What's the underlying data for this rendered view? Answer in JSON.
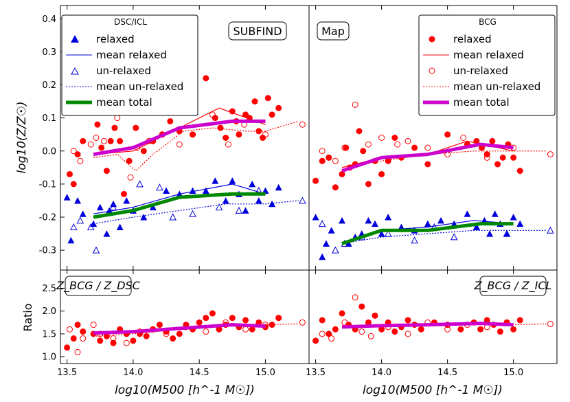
{
  "figure": {
    "xlabel": "log10(M500 [h^-1 M☉])",
    "top_ylabel": "log10(Z/Z☉)",
    "bottom_ylabel": "Ratio"
  },
  "legends": {
    "left": {
      "title": "DSC/ICL",
      "entries": [
        "relaxed",
        "mean relaxed",
        "un-relaxed",
        "mean un-relaxed",
        "mean total"
      ]
    },
    "right": {
      "title": "BCG",
      "entries": [
        "relaxed",
        "mean relaxed",
        "un-relaxed",
        "mean un-relaxed",
        "mean total"
      ]
    }
  },
  "panel_labels": {
    "top_left": "SUBFIND",
    "top_right": "Map",
    "bottom_left": "Z_BCG / Z_DSC",
    "bottom_right": "Z_BCG / Z_ICL"
  },
  "colors": {
    "bcg": "#ff0000",
    "dsc": "#0000dd",
    "mean_total_top": "#cc00cc",
    "mean_total_dsc": "#008800"
  },
  "chart_data": [
    {
      "type": "scatter",
      "panel": "top-left",
      "x_ticks": [
        "13.5",
        "14.0",
        "14.5",
        "15.0"
      ],
      "y_ticks": [
        "0.4",
        "0.3",
        "0.2",
        "0.1",
        "0.0",
        "-0.1",
        "-0.2",
        "-0.3"
      ],
      "xlim": [
        13.45,
        15.33
      ],
      "ylim": [
        -0.36,
        0.44
      ],
      "series": [
        {
          "name": "relaxed",
          "group": "bcg",
          "style": "dot-filled",
          "x": [
            13.52,
            13.55,
            13.58,
            13.62,
            13.73,
            13.76,
            13.8,
            13.83,
            13.86,
            13.9,
            13.93,
            13.97,
            14.02,
            14.08,
            14.15,
            14.22,
            14.28,
            14.35,
            14.45,
            14.55,
            14.62,
            14.66,
            14.7,
            14.75,
            14.78,
            14.8,
            14.85,
            14.88,
            14.92,
            14.95,
            14.98,
            15.02,
            15.05,
            15.1
          ],
          "y": [
            -0.07,
            -0.1,
            -0.01,
            0.03,
            0.08,
            0.01,
            -0.06,
            0.03,
            0.07,
            0.03,
            -0.13,
            -0.03,
            0.07,
            0.0,
            0.03,
            0.05,
            0.09,
            0.06,
            0.05,
            0.22,
            0.1,
            0.07,
            0.04,
            0.12,
            0.09,
            0.05,
            0.11,
            0.1,
            0.15,
            0.06,
            0.04,
            0.16,
            0.11,
            0.13
          ]
        },
        {
          "name": "mean relaxed",
          "group": "bcg",
          "style": "line-thin",
          "x": [
            13.7,
            14.0,
            14.35,
            14.65,
            15.0
          ],
          "y": [
            -0.01,
            0.0,
            0.07,
            0.13,
            0.08
          ]
        },
        {
          "name": "un-relaxed",
          "group": "bcg",
          "style": "dot-open",
          "x": [
            13.55,
            13.6,
            13.68,
            13.72,
            13.78,
            13.88,
            13.98,
            14.03,
            14.12,
            14.22,
            14.35,
            14.45,
            14.6,
            14.72,
            14.84,
            15.0,
            15.28
          ],
          "y": [
            0.0,
            -0.03,
            0.02,
            0.04,
            0.03,
            0.1,
            -0.08,
            0.01,
            0.03,
            0.05,
            0.02,
            0.05,
            0.11,
            0.02,
            0.08,
            0.05,
            0.08
          ]
        },
        {
          "name": "mean un-relaxed",
          "group": "bcg",
          "style": "line-dotted",
          "x": [
            13.7,
            13.88,
            14.02,
            14.15,
            14.38,
            14.6,
            14.85,
            15.0,
            15.25
          ],
          "y": [
            -0.02,
            -0.01,
            -0.06,
            -0.01,
            0.06,
            0.07,
            0.06,
            0.06,
            0.09
          ]
        },
        {
          "name": "mean total",
          "group": "bcg",
          "style": "line-thick-magenta",
          "x": [
            13.7,
            14.0,
            14.35,
            14.75,
            15.0
          ],
          "y": [
            -0.01,
            0.01,
            0.07,
            0.09,
            0.09
          ]
        },
        {
          "name": "relaxed",
          "group": "dsc",
          "style": "triangle-filled",
          "x": [
            13.5,
            13.53,
            13.58,
            13.62,
            13.7,
            13.75,
            13.8,
            13.82,
            13.85,
            13.9,
            13.95,
            14.0,
            14.08,
            14.15,
            14.25,
            14.35,
            14.45,
            14.55,
            14.62,
            14.7,
            14.75,
            14.8,
            14.85,
            14.9,
            14.95,
            15.0,
            15.05,
            15.1
          ],
          "y": [
            -0.14,
            -0.27,
            -0.15,
            -0.19,
            -0.22,
            -0.17,
            -0.25,
            -0.18,
            -0.16,
            -0.23,
            -0.15,
            -0.18,
            -0.2,
            -0.17,
            -0.12,
            -0.13,
            -0.12,
            -0.12,
            -0.09,
            -0.15,
            -0.09,
            -0.13,
            -0.18,
            -0.1,
            -0.15,
            -0.12,
            -0.16,
            -0.11
          ]
        },
        {
          "name": "mean relaxed",
          "group": "dsc",
          "style": "line-thin",
          "x": [
            13.7,
            14.0,
            14.35,
            14.75,
            15.0
          ],
          "y": [
            -0.19,
            -0.17,
            -0.13,
            -0.1,
            -0.13
          ]
        },
        {
          "name": "un-relaxed",
          "group": "dsc",
          "style": "triangle-open",
          "x": [
            13.55,
            13.6,
            13.68,
            13.72,
            13.85,
            14.05,
            14.2,
            14.3,
            14.45,
            14.65,
            14.8,
            14.95,
            15.28
          ],
          "y": [
            -0.23,
            -0.21,
            -0.23,
            -0.3,
            -0.17,
            -0.1,
            -0.11,
            -0.2,
            -0.19,
            -0.17,
            -0.18,
            -0.12,
            -0.15
          ]
        },
        {
          "name": "mean un-relaxed",
          "group": "dsc",
          "style": "line-dotted",
          "x": [
            13.7,
            14.0,
            14.35,
            14.7,
            15.0,
            15.25
          ],
          "y": [
            -0.22,
            -0.2,
            -0.18,
            -0.16,
            -0.16,
            -0.15
          ]
        },
        {
          "name": "mean total",
          "group": "dsc",
          "style": "line-thick-green",
          "x": [
            13.7,
            14.0,
            14.35,
            14.75,
            15.0
          ],
          "y": [
            -0.2,
            -0.18,
            -0.14,
            -0.13,
            -0.13
          ]
        }
      ]
    },
    {
      "type": "scatter",
      "panel": "top-right",
      "x_ticks": [
        "13.5",
        "14.0",
        "14.5",
        "15.0"
      ],
      "xlim": [
        13.45,
        15.33
      ],
      "ylim": [
        -0.36,
        0.44
      ],
      "series": [
        {
          "name": "relaxed",
          "group": "bcg",
          "style": "dot-filled",
          "x": [
            13.5,
            13.55,
            13.6,
            13.65,
            13.7,
            13.73,
            13.76,
            13.8,
            13.83,
            13.86,
            13.9,
            13.95,
            14.0,
            14.05,
            14.1,
            14.15,
            14.25,
            14.35,
            14.5,
            14.65,
            14.72,
            14.76,
            14.8,
            14.84,
            14.88,
            14.92,
            14.96,
            15.0,
            15.05
          ],
          "y": [
            -0.09,
            -0.03,
            -0.02,
            -0.11,
            -0.07,
            0.01,
            -0.05,
            -0.04,
            0.06,
            0.0,
            -0.1,
            -0.03,
            -0.07,
            -0.03,
            0.04,
            -0.02,
            0.01,
            -0.04,
            0.05,
            0.02,
            0.03,
            0.01,
            -0.01,
            0.03,
            -0.04,
            -0.02,
            0.02,
            -0.02,
            -0.06
          ]
        },
        {
          "name": "mean relaxed",
          "group": "bcg",
          "style": "line-thin",
          "x": [
            13.7,
            14.0,
            14.35,
            14.65,
            15.0
          ],
          "y": [
            -0.05,
            -0.02,
            -0.01,
            0.03,
            0.0
          ]
        },
        {
          "name": "un-relaxed",
          "group": "bcg",
          "style": "dot-open",
          "x": [
            13.55,
            13.6,
            13.65,
            13.72,
            13.8,
            13.9,
            14.0,
            14.12,
            14.2,
            14.35,
            14.5,
            14.62,
            14.8,
            15.0,
            15.28
          ],
          "y": [
            0.0,
            -0.02,
            -0.03,
            0.01,
            0.14,
            0.02,
            0.04,
            0.02,
            0.03,
            0.01,
            -0.01,
            0.04,
            -0.02,
            0.01,
            -0.01
          ]
        },
        {
          "name": "mean un-relaxed",
          "group": "bcg",
          "style": "line-dotted",
          "x": [
            13.7,
            14.0,
            14.35,
            14.7,
            15.0,
            15.25
          ],
          "y": [
            -0.05,
            -0.03,
            -0.01,
            0.0,
            0.0,
            0.0
          ]
        },
        {
          "name": "mean total",
          "group": "bcg",
          "style": "line-thick-magenta",
          "x": [
            13.7,
            14.0,
            14.35,
            14.75,
            15.0
          ],
          "y": [
            -0.06,
            -0.02,
            -0.01,
            0.02,
            0.01
          ]
        },
        {
          "name": "relaxed",
          "group": "dsc",
          "style": "triangle-filled",
          "x": [
            13.5,
            13.55,
            13.58,
            13.62,
            13.7,
            13.75,
            13.8,
            13.85,
            13.9,
            13.95,
            14.0,
            14.05,
            14.15,
            14.25,
            14.35,
            14.45,
            14.55,
            14.65,
            14.72,
            14.78,
            14.82,
            14.86,
            14.9,
            14.95,
            15.0,
            15.05
          ],
          "y": [
            -0.2,
            -0.32,
            -0.28,
            -0.24,
            -0.21,
            -0.28,
            -0.26,
            -0.25,
            -0.21,
            -0.22,
            -0.25,
            -0.2,
            -0.23,
            -0.24,
            -0.22,
            -0.21,
            -0.22,
            -0.19,
            -0.23,
            -0.21,
            -0.25,
            -0.19,
            -0.22,
            -0.25,
            -0.2,
            -0.22
          ]
        },
        {
          "name": "mean relaxed",
          "group": "dsc",
          "style": "line-thin",
          "x": [
            13.7,
            14.0,
            14.35,
            14.7,
            15.0
          ],
          "y": [
            -0.28,
            -0.24,
            -0.23,
            -0.21,
            -0.22
          ]
        },
        {
          "name": "un-relaxed",
          "group": "dsc",
          "style": "triangle-open",
          "x": [
            13.55,
            13.65,
            13.72,
            13.85,
            14.05,
            14.25,
            14.4,
            14.55,
            14.72,
            14.95,
            15.28
          ],
          "y": [
            -0.22,
            -0.3,
            -0.28,
            -0.26,
            -0.25,
            -0.27,
            -0.23,
            -0.26,
            -0.23,
            -0.25,
            -0.24
          ]
        },
        {
          "name": "mean un-relaxed",
          "group": "dsc",
          "style": "line-dotted",
          "x": [
            13.7,
            14.0,
            14.35,
            14.7,
            15.0,
            15.25
          ],
          "y": [
            -0.28,
            -0.26,
            -0.25,
            -0.24,
            -0.24,
            -0.24
          ]
        },
        {
          "name": "mean total",
          "group": "dsc",
          "style": "line-thick-green",
          "x": [
            13.7,
            14.0,
            14.35,
            14.75,
            15.0
          ],
          "y": [
            -0.28,
            -0.24,
            -0.24,
            -0.22,
            -0.22
          ]
        }
      ]
    },
    {
      "type": "scatter",
      "panel": "bottom-left",
      "x_ticks": [
        "13.5",
        "14.0",
        "14.5",
        "15.0"
      ],
      "y_ticks": [
        "2.5",
        "2.0",
        "1.5",
        "1.0"
      ],
      "xlim": [
        13.45,
        15.33
      ],
      "ylim": [
        0.85,
        2.9
      ],
      "series": [
        {
          "name": "relaxed",
          "style": "dot-filled",
          "x": [
            13.5,
            13.55,
            13.58,
            13.62,
            13.7,
            13.75,
            13.8,
            13.85,
            13.9,
            13.95,
            14.0,
            14.05,
            14.1,
            14.15,
            14.2,
            14.25,
            14.3,
            14.35,
            14.4,
            14.45,
            14.5,
            14.55,
            14.6,
            14.65,
            14.7,
            14.75,
            14.8,
            14.85,
            14.9,
            14.95,
            15.0,
            15.05,
            15.1
          ],
          "y": [
            1.2,
            1.4,
            1.7,
            1.55,
            1.5,
            1.35,
            1.45,
            1.3,
            1.6,
            1.5,
            1.35,
            1.5,
            1.45,
            1.6,
            1.7,
            1.55,
            1.4,
            1.5,
            1.7,
            1.6,
            1.75,
            1.85,
            1.95,
            1.6,
            1.7,
            1.85,
            1.65,
            1.8,
            1.6,
            1.75,
            1.65,
            1.7,
            1.85
          ]
        },
        {
          "name": "un-relaxed",
          "style": "dot-open",
          "x": [
            13.52,
            13.58,
            13.62,
            13.7,
            13.75,
            13.85,
            13.95,
            14.05,
            14.15,
            14.25,
            14.4,
            14.55,
            14.7,
            14.85,
            15.0,
            15.1,
            15.28
          ],
          "y": [
            1.6,
            1.1,
            1.4,
            1.7,
            1.5,
            1.4,
            1.3,
            1.55,
            1.6,
            1.5,
            1.65,
            1.55,
            1.75,
            1.6,
            1.7,
            1.85,
            1.75
          ]
        },
        {
          "name": "mean un-relaxed",
          "style": "line-dotted",
          "x": [
            13.7,
            14.0,
            14.35,
            14.7,
            15.0,
            15.25
          ],
          "y": [
            1.45,
            1.5,
            1.6,
            1.68,
            1.7,
            1.72
          ]
        },
        {
          "name": "mean total",
          "style": "line-thick-magenta",
          "x": [
            13.7,
            14.0,
            14.35,
            14.75,
            15.0
          ],
          "y": [
            1.52,
            1.55,
            1.62,
            1.7,
            1.67
          ]
        }
      ]
    },
    {
      "type": "scatter",
      "panel": "bottom-right",
      "x_ticks": [
        "13.5",
        "14.0",
        "14.5",
        "15.0"
      ],
      "xlim": [
        13.45,
        15.33
      ],
      "ylim": [
        0.85,
        2.9
      ],
      "series": [
        {
          "name": "relaxed",
          "style": "dot-filled",
          "x": [
            13.5,
            13.55,
            13.6,
            13.65,
            13.7,
            13.75,
            13.8,
            13.85,
            13.9,
            13.95,
            14.0,
            14.05,
            14.1,
            14.15,
            14.2,
            14.25,
            14.3,
            14.4,
            14.5,
            14.6,
            14.7,
            14.75,
            14.8,
            14.85,
            14.9,
            14.95,
            15.0,
            15.05
          ],
          "y": [
            1.35,
            1.8,
            1.5,
            1.6,
            1.95,
            1.7,
            1.6,
            2.1,
            1.75,
            1.9,
            1.6,
            1.75,
            1.55,
            1.65,
            1.8,
            1.7,
            1.6,
            1.75,
            1.7,
            1.6,
            1.75,
            1.6,
            1.8,
            1.7,
            1.55,
            1.75,
            1.6,
            1.8
          ]
        },
        {
          "name": "un-relaxed",
          "style": "dot-open",
          "x": [
            13.55,
            13.62,
            13.72,
            13.8,
            13.85,
            13.92,
            14.05,
            14.2,
            14.35,
            14.5,
            14.65,
            14.8,
            14.95,
            15.28
          ],
          "y": [
            1.5,
            1.4,
            1.75,
            2.3,
            1.55,
            1.45,
            1.65,
            1.5,
            1.75,
            1.6,
            1.7,
            1.65,
            1.75,
            1.72
          ]
        },
        {
          "name": "mean un-relaxed",
          "style": "line-dotted",
          "x": [
            13.7,
            14.0,
            14.35,
            14.7,
            15.0,
            15.25
          ],
          "y": [
            1.65,
            1.66,
            1.68,
            1.72,
            1.7,
            1.72
          ]
        },
        {
          "name": "mean total",
          "style": "line-thick-magenta",
          "x": [
            13.7,
            14.0,
            14.35,
            14.75,
            15.0
          ],
          "y": [
            1.65,
            1.68,
            1.7,
            1.73,
            1.7
          ]
        }
      ]
    }
  ]
}
